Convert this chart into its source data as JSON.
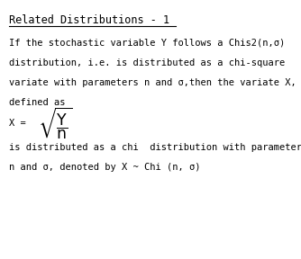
{
  "title": "Related Distributions - 1",
  "background_color": "#ffffff",
  "text_color": "#000000",
  "font_family": "monospace",
  "title_fontsize": 8.5,
  "body_fontsize": 7.5,
  "line1": "If the stochastic variable Y follows a Chis2(n,σ)",
  "line2": "distribution, i.e. is distributed as a chi-square",
  "line3": "variate with parameters n and σ,then the variate X,",
  "line4": "defined as",
  "line5": "is distributed as a chi  distribution with parameters",
  "line6": "n and σ, denoted by X ~ Chi (n, σ)"
}
